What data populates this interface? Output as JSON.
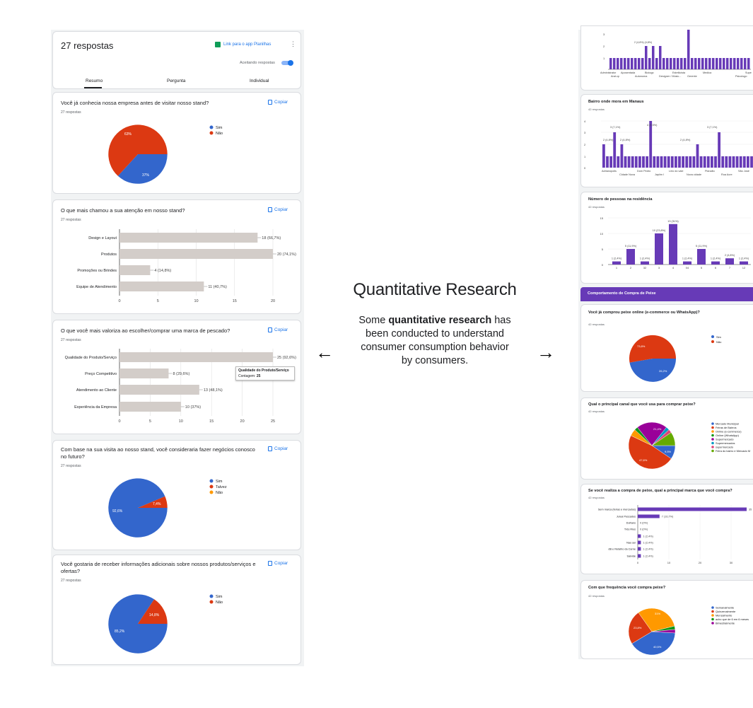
{
  "left": {
    "header": {
      "title": "27 respostas",
      "sheets_link": "Link para o app Planilhas",
      "accepting": "Aceitando respostas"
    },
    "tabs": [
      "Resumo",
      "Pergunta",
      "Individual"
    ],
    "copy_label": "Copiar",
    "q1": {
      "title": "Você já conhecia nossa empresa antes de visitar nosso stand?",
      "count": "27 respostas",
      "legend": [
        "Sim",
        "Não"
      ],
      "labels": [
        "63%",
        "37%"
      ]
    },
    "q2": {
      "title": "O que mais chamou a sua atenção em nosso stand?",
      "count": "27 respostas"
    },
    "q3": {
      "title": "O que você mais valoriza ao escolher/comprar uma marca de pescado?",
      "count": "27 respostas",
      "tooltip_title": "Qualidade do Produto/Serviço",
      "tooltip_label": "Contagem:",
      "tooltip_value": "25"
    },
    "q4": {
      "title_line1": "Com base na sua visita ao nosso stand, você consideraria fazer negócios conosco",
      "title_line2": "no futuro?",
      "count": "27 respostas",
      "legend": [
        "Sim",
        "Talvez",
        "Não"
      ],
      "labels": [
        "92,6%",
        "7,4%"
      ]
    },
    "q5": {
      "title_line1": "Você gostaria de receber informações adicionais sobre nossos produtos/serviços e",
      "title_line2": "ofertas?",
      "count": "27 respostas",
      "legend": [
        "Sim",
        "Não"
      ],
      "labels": [
        "85,2%",
        "14,8%"
      ]
    }
  },
  "center": {
    "title": "Quantitative Research",
    "body_1": "Some ",
    "body_bold_1": "quantitative",
    "body_bold_2": "research",
    "body_2": " has been conducted to understand consumer consumption behavior by consumers.",
    "left_arrow": "←",
    "right_arrow": "→"
  },
  "right": {
    "top_axis_categories": [
      "Administrator",
      "Aposentada",
      "Biologo",
      "Estetiicista",
      "Medica",
      "Supe",
      "Arat.cp",
      "Autonoma",
      "Designer / Músic...",
      "Gerente",
      "Psicologo"
    ],
    "top_labels": [
      "2 (4,8%) (4,8%)"
    ],
    "bairro": {
      "title": "Bairro onde mora em Manaus",
      "count": "42 respostas",
      "categories": [
        "Adrianopolis",
        "Dom Pedro",
        "Lirio do vale",
        "Planalto",
        "São José",
        "Cidade Nova",
        "Japiim I",
        "Nova cidade",
        "Rua Acre"
      ],
      "labels": [
        "3 (7,1%)",
        "2 (4,8%)",
        "2 (4,8%)",
        "4 (9,5%)",
        "2 (4,8%)",
        "3 (7,1%)"
      ]
    },
    "pessoas": {
      "title": "Número de pessoas na residência",
      "count": "42 respostas"
    },
    "section_header": "Comportamento de Compra de Peixe",
    "online": {
      "title": "Você já comprou peixe online (e-commerce ou WhatsApp)?",
      "count": "42 respostas",
      "legend": [
        "Sim",
        "Não"
      ],
      "labels": [
        "73,8%",
        "26,2%"
      ]
    },
    "canal": {
      "title": "Qual o principal canal que você usa para comprar peixe?",
      "count": "42 respostas",
      "legend": [
        "Mercado Municipal",
        "Feiras de Bairros",
        "Online (e-commerce)",
        "Online (WhatsApp)",
        "Supermercado",
        "Supermercados",
        "supermercado",
        "Feira do bairro e Mercado M"
      ],
      "labels": [
        "21,4%",
        "9,5%",
        "47,6%"
      ]
    },
    "marca": {
      "title": "Se você realiza a compra de peixe, qual a principal marca que você compra?",
      "count": "42 respostas"
    },
    "frequencia": {
      "title": "Com que frequência você compra peixe?",
      "count": "42 respostas",
      "legend": [
        "Semanalmente",
        "Quinzenalmente",
        "Mensalmente",
        "acho que de 6 em 6 meses",
        "Bimestralmente"
      ],
      "labels": [
        "31%",
        "23,8%",
        "40,5%"
      ]
    }
  },
  "colors": {
    "blue": "#3366cc",
    "red": "#dc3912",
    "orange": "#ff9900",
    "green": "#109618",
    "purple": "#990099",
    "teal": "#0099c6",
    "pink": "#dd4477",
    "bar_grey": "#d3cdc9",
    "violet": "#673ab7",
    "accent": "#1a73e8"
  },
  "chart_data": [
    {
      "type": "pie",
      "title": "Você já conhecia nossa empresa antes de visitar nosso stand?",
      "categories": [
        "Sim",
        "Não"
      ],
      "values": [
        37,
        63
      ]
    },
    {
      "type": "bar",
      "title": "O que mais chamou a sua atenção em nosso stand?",
      "categories": [
        "Design e Layout",
        "Produtos",
        "Promoções ou Brindes",
        "Equipe de Atendimento"
      ],
      "values": [
        18,
        20,
        4,
        11
      ],
      "data_labels": [
        "18 (66,7%)",
        "20 (74,1%)",
        "4 (14,8%)",
        "11 (40,7%)"
      ],
      "xlim": [
        0,
        20
      ],
      "xticks": [
        "0",
        "5",
        "10",
        "15",
        "20"
      ]
    },
    {
      "type": "bar",
      "title": "O que você mais valoriza ao escolher/comprar uma marca de pescado?",
      "categories": [
        "Qualidade do Produto/Serviço",
        "Preço Competitivo",
        "Atendimento ao Cliente",
        "Experiência da Empresa"
      ],
      "values": [
        25,
        8,
        13,
        10
      ],
      "data_labels": [
        "25 (92,6%)",
        "8 (29,6%)",
        "13 (48,1%)",
        "10 (37%)"
      ],
      "xlim": [
        0,
        25
      ],
      "xticks": [
        "0",
        "5",
        "10",
        "15",
        "20",
        "25"
      ]
    },
    {
      "type": "pie",
      "title": "Com base na sua visita ao nosso stand, você consideraria fazer negócios conosco no futuro?",
      "categories": [
        "Sim",
        "Talvez",
        "Não"
      ],
      "values": [
        92.6,
        7.4,
        0
      ]
    },
    {
      "type": "pie",
      "title": "Você gostaria de receber informações adicionais sobre nossos produtos/serviços e ofertas?",
      "categories": [
        "Sim",
        "Não"
      ],
      "values": [
        85.2,
        14.8
      ]
    },
    {
      "type": "bar",
      "title": "Número de pessoas na residência",
      "categories": [
        "1",
        "2",
        "32",
        "3",
        "4",
        "04",
        "5",
        "6",
        "7",
        "12"
      ],
      "values": [
        1,
        5,
        1,
        10,
        13,
        1,
        5,
        1,
        2,
        1
      ],
      "data_labels": [
        "1 (2,4%)",
        "5 (11,9%)",
        "1 (2,4%)",
        "10 (23,8%)",
        "13 (31%)",
        "1 (2,4%)",
        "5 (11,9%)",
        "1 (2,4%)",
        "2 (4,8%)",
        "1 (2,4%)"
      ],
      "ylim": [
        0,
        15
      ],
      "yticks": [
        "0",
        "5",
        "10",
        "15"
      ]
    },
    {
      "type": "pie",
      "title": "Você já comprou peixe online (e-commerce ou WhatsApp)?",
      "categories": [
        "Sim",
        "Não"
      ],
      "values": [
        26.2,
        73.8
      ]
    },
    {
      "type": "pie",
      "title": "Qual o principal canal que você usa para comprar peixe?",
      "categories": [
        "Mercado Municipal",
        "Feiras de Bairros",
        "Online (e-commerce)",
        "Online (WhatsApp)",
        "Supermercado",
        "Supermercados",
        "supermercado",
        "Feira do bairro e Mercado M"
      ],
      "values": [
        9.5,
        47.6,
        4.8,
        2.4,
        21.4,
        2.4,
        2.4,
        9.5
      ]
    },
    {
      "type": "bar",
      "title": "Se você realiza a compra de peixe, qual a principal marca que você compra?",
      "categories": [
        "Sem marca (feiras e mercados)",
        "Juruá Pescados",
        "Dufrans",
        "Três Rios",
        "",
        "Nao sei",
        "dB e Retalho da Carne",
        "Salvide"
      ],
      "values": [
        35,
        7,
        0,
        0,
        1,
        1,
        1,
        1
      ],
      "data_labels": [
        "35",
        "7 (16,7%)",
        "0 (0%)",
        "0 (0%)",
        "1 (2,4%)",
        "1 (2,4%)",
        "1 (2,4%)",
        "1 (2,4%)"
      ],
      "xticks": [
        "0",
        "10",
        "20",
        "30"
      ]
    },
    {
      "type": "pie",
      "title": "Com que frequência você compra peixe?",
      "categories": [
        "Semanalmente",
        "Quinzenalmente",
        "Mensalmente",
        "acho que de 6 em 6 meses",
        "Bimestralmente"
      ],
      "values": [
        40.5,
        23.8,
        31,
        2.4,
        2.4
      ]
    }
  ]
}
